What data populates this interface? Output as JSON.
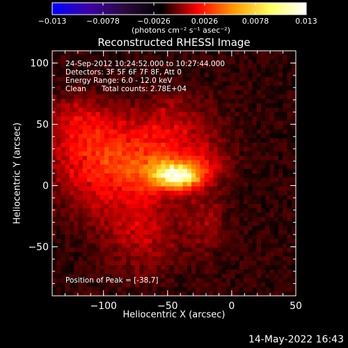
{
  "chart_data": {
    "type": "heatmap",
    "title": "Reconstructed RHESSI Image",
    "xlabel": "Heliocentric X (arcsec)",
    "ylabel": "Heliocentric Y (arcsec)",
    "xlim": [
      -140,
      50
    ],
    "ylim": [
      -90,
      110
    ],
    "x_ticks": [
      -100,
      -50,
      0,
      50
    ],
    "x_tick_labels": [
      "−100",
      "−50",
      "0",
      "50"
    ],
    "y_ticks": [
      -50,
      0,
      50,
      100
    ],
    "y_tick_labels": [
      "−50",
      "0",
      "50",
      "100"
    ],
    "colorbar": {
      "range": [
        -0.013,
        0.013
      ],
      "ticks": [
        -0.013,
        -0.0078,
        -0.0026,
        0.0026,
        0.0078,
        0.013
      ],
      "tick_labels": [
        "−0.013",
        "−0.0078",
        "−0.0026",
        "0.0026",
        "0.0078",
        "0.013"
      ],
      "units_label": "(photons cm⁻² s⁻¹ asec⁻²)",
      "colormap": [
        "#0000ff",
        "#3d00a8",
        "#2a0a3c",
        "#000000",
        "#ff0000",
        "#ff9900",
        "#ffff60",
        "#ffffff"
      ]
    },
    "annotations": {
      "time_range": "24-Sep-2012 10:24:52.000 to 10:27:44.000",
      "detectors": "Detectors: 3F 5F 6F 7F 8F, Att 0",
      "energy_range": "Energy Range: 6.0 - 12.0 keV",
      "algorithm": "Clean",
      "total_counts": "Total counts: 2.78E+04",
      "peak_position": "Position of Peak = [-38,7]"
    },
    "peak": {
      "x": -38,
      "y": 7,
      "value": 0.013
    },
    "sources": [
      {
        "x": -42,
        "y": 8,
        "sx": 12,
        "sy": 7,
        "amp": 0.0105
      },
      {
        "x": -60,
        "y": 12,
        "sx": 20,
        "sy": 12,
        "amp": 0.0036
      },
      {
        "x": -95,
        "y": 32,
        "sx": 32,
        "sy": 18,
        "amp": 0.0026
      },
      {
        "x": -105,
        "y": 5,
        "sx": 24,
        "sy": 24,
        "amp": 0.0022
      },
      {
        "x": -70,
        "y": -35,
        "sx": 20,
        "sy": 25,
        "amp": 0.0022
      },
      {
        "x": -45,
        "y": 48,
        "sx": 22,
        "sy": 18,
        "amp": 0.002
      },
      {
        "x": -20,
        "y": 18,
        "sx": 14,
        "sy": 12,
        "amp": 0.0018
      },
      {
        "x": -22,
        "y": -30,
        "sx": 12,
        "sy": 18,
        "amp": 0.0015
      },
      {
        "x": -120,
        "y": 55,
        "sx": 18,
        "sy": 14,
        "amp": 0.0018
      }
    ],
    "background": -0.0012,
    "grid": false
  },
  "timestamp": "14-May-2022 16:43"
}
